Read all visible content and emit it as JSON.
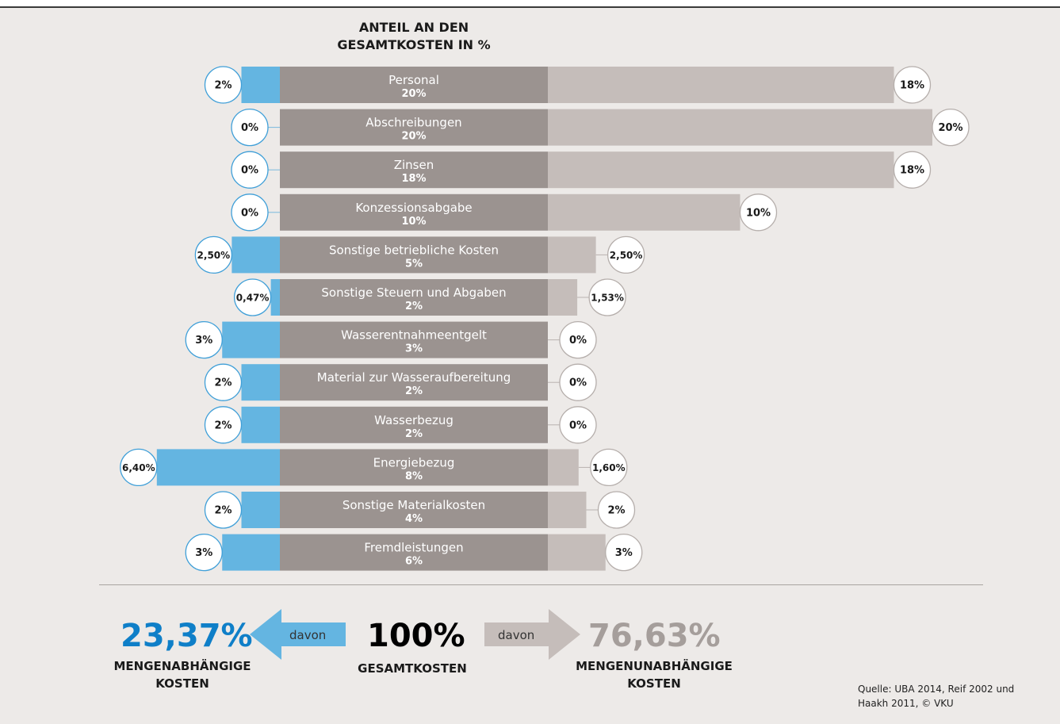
{
  "chart_data": {
    "type": "bar",
    "title": "ANTEIL AN DEN GESAMTKOSTEN IN %",
    "categories": [
      "Personal",
      "Abschreibungen",
      "Zinsen",
      "Konzessionsabgabe",
      "Sonstige betriebliche Kosten",
      "Sonstige Steuern und Abgaben",
      "Wasserentnahmeentgelt",
      "Material zur Wasseraufbereitung",
      "Wasserbezug",
      "Energiebezug",
      "Sonstige Materialkosten",
      "Fremdleistungen"
    ],
    "total_labels": [
      "20%",
      "20%",
      "18%",
      "10%",
      "5%",
      "2%",
      "3%",
      "2%",
      "2%",
      "8%",
      "4%",
      "6%"
    ],
    "series": [
      {
        "values": [
          2,
          0,
          0,
          0,
          2.5,
          0.47,
          3,
          2,
          2,
          6.4,
          2,
          3
        ],
        "labels": [
          "2%",
          "0%",
          "0%",
          "0%",
          "2,50%",
          "0,47%",
          "3%",
          "2%",
          "2%",
          "6,40%",
          "2%",
          "3%"
        ]
      },
      {
        "values": [
          18,
          20,
          18,
          10,
          2.5,
          1.53,
          0,
          0,
          0,
          1.6,
          2,
          3
        ],
        "labels": [
          "18%",
          "20%",
          "18%",
          "10%",
          "2,50%",
          "1,53%",
          "0%",
          "0%",
          "0%",
          "1,60%",
          "2%",
          "3%"
        ]
      }
    ],
    "colors": {
      "dependent": "#64b5e1",
      "total": "#9b9390",
      "independent": "#c5bdba"
    }
  },
  "summary": {
    "dependent": {
      "value": "23,37%",
      "label1": "MENGENABHÄNGIGE",
      "label2": "KOSTEN",
      "color": "#0f7fc8"
    },
    "total": {
      "value": "100%",
      "label": "GESAMTKOSTEN"
    },
    "independent": {
      "value": "76,63%",
      "label1": "MENGENUNABHÄNGIGE",
      "label2": "KOSTEN",
      "color": "#a59e9b"
    },
    "arrow_text": "davon"
  },
  "source": {
    "line1": "Quelle: UBA 2014, Reif 2002 und",
    "line2": "Haakh 2011, © VKU"
  }
}
